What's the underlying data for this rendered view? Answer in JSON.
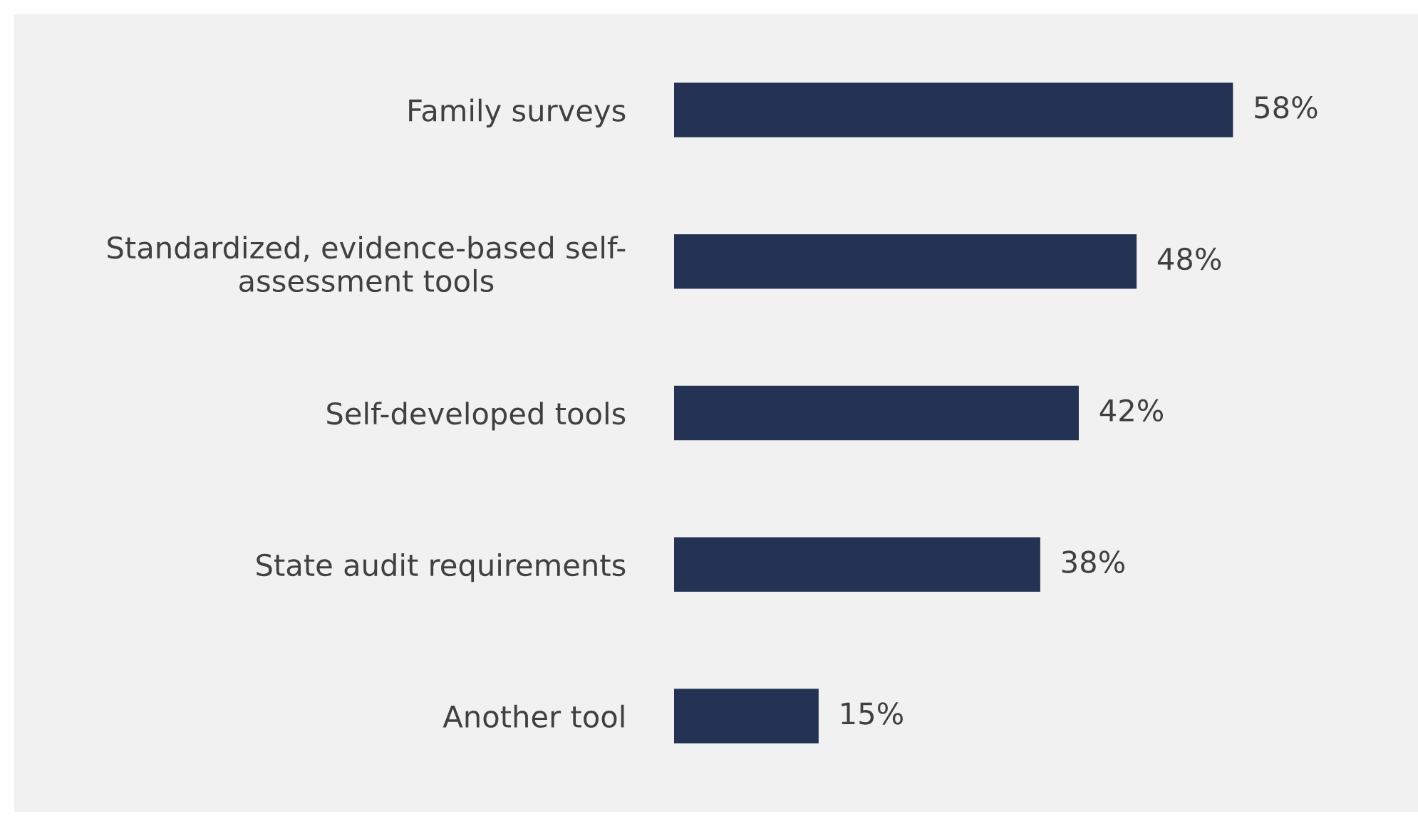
{
  "chart_data": {
    "type": "bar",
    "orientation": "horizontal",
    "categories": [
      "Family surveys",
      "Standardized, evidence-based self-\nassessment tools",
      "Self-developed tools",
      "State audit requirements",
      "Another tool"
    ],
    "values": [
      58,
      48,
      42,
      38,
      15
    ],
    "value_labels": [
      "58%",
      "48%",
      "42%",
      "38%",
      "15%"
    ],
    "color": "#243354",
    "grid": false,
    "legend": false
  }
}
